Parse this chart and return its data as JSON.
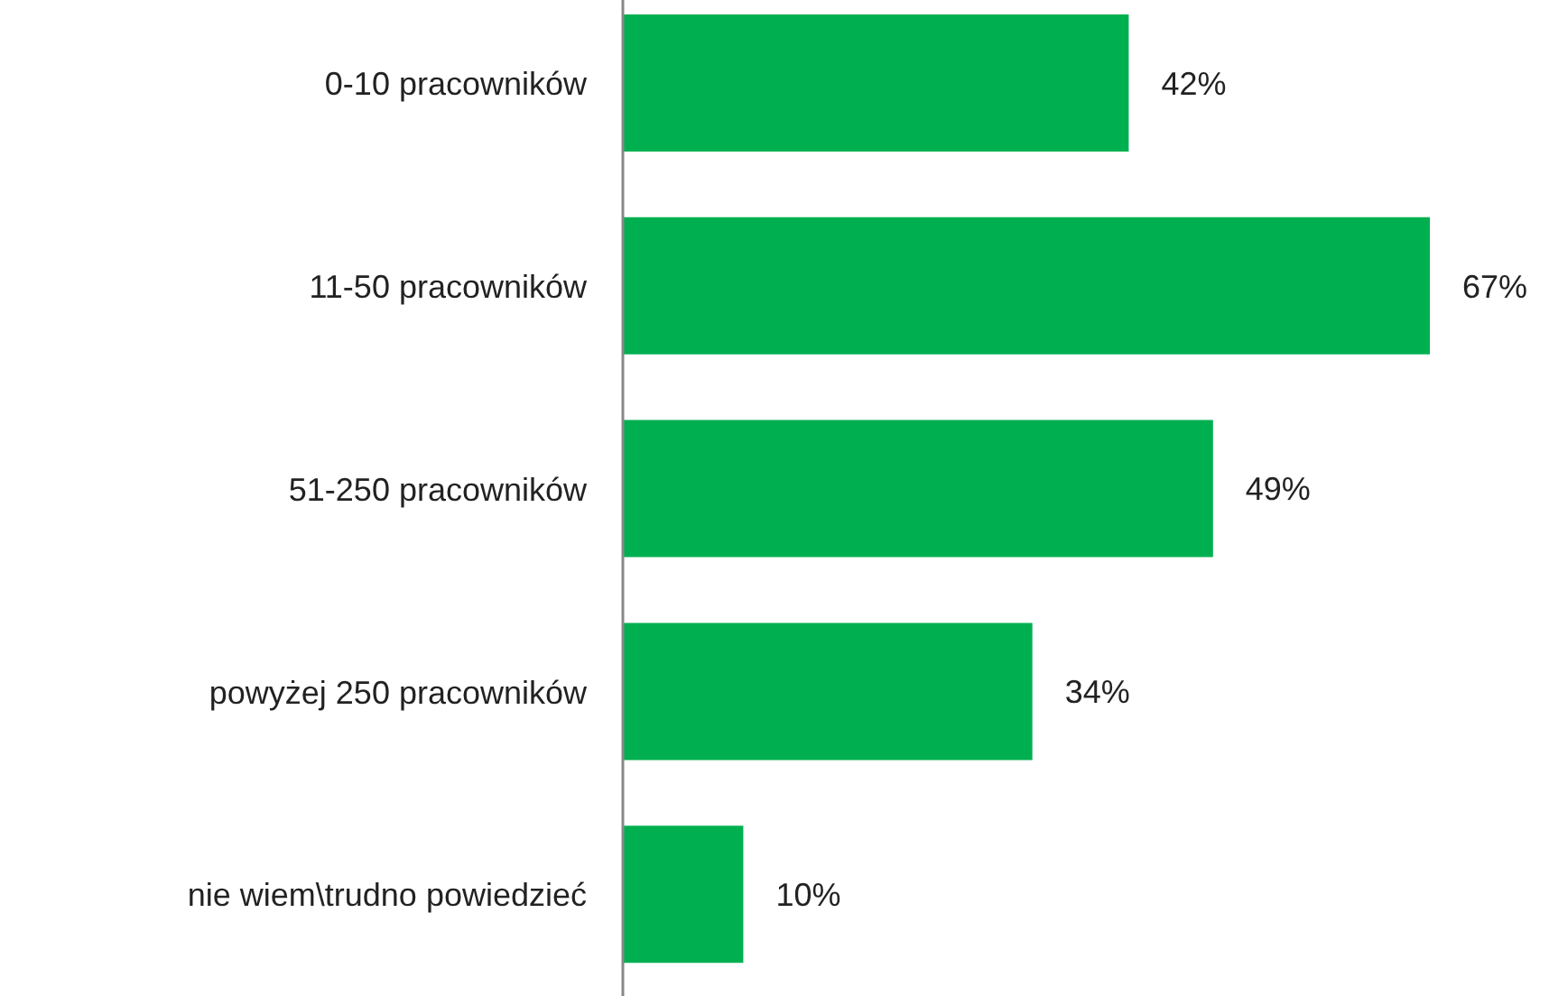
{
  "chart_data": {
    "type": "bar",
    "orientation": "horizontal",
    "categories": [
      "0-10 pracowników",
      "11-50 pracowników",
      "51-250 pracowników",
      "powyżej 250 pracowników",
      "nie wiem\\trudno powiedzieć"
    ],
    "values": [
      42,
      67,
      49,
      34,
      10
    ],
    "value_labels": [
      "42%",
      "67%",
      "49%",
      "34%",
      "10%"
    ],
    "color": "#00b050",
    "grid": false,
    "legend": false
  }
}
